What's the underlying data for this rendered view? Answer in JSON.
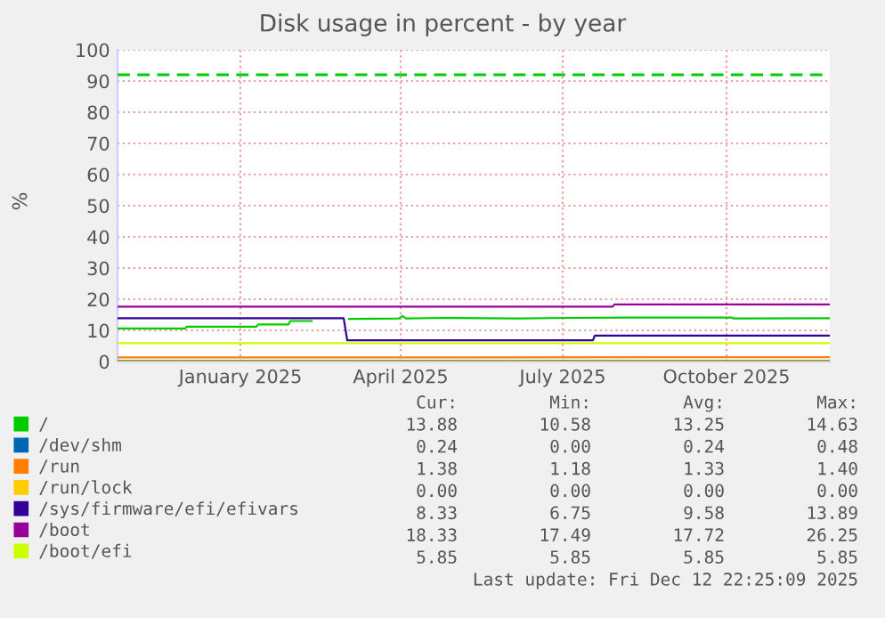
{
  "chart_data": {
    "type": "line",
    "title": "Disk usage in percent - by year",
    "ylabel": "%",
    "xlim": [
      "2024-11-07",
      "2025-12-12"
    ],
    "xticks": [
      {
        "value": "2025-01-15",
        "label": "January 2025"
      },
      {
        "value": "2025-04-15",
        "label": "April 2025"
      },
      {
        "value": "2025-07-15",
        "label": "July 2025"
      },
      {
        "value": "2025-10-15",
        "label": "October 2025"
      }
    ],
    "ylim": [
      0,
      100
    ],
    "yticks": [
      0,
      10,
      20,
      30,
      40,
      50,
      60,
      70,
      80,
      90,
      100
    ],
    "grid": true,
    "legend": "bottom",
    "series": [
      {
        "name": "/",
        "color": "#00cc00",
        "x": [
          "2024-11-07",
          "2024-12-15",
          "2024-12-16",
          "2025-01-24",
          "2025-01-25",
          "2025-02-11",
          "2025-02-12",
          "2025-02-24",
          "2025-02-25",
          "2025-03-17",
          "2025-04-14",
          "2025-04-16",
          "2025-04-18",
          "2025-05-10",
          "2025-06-20",
          "2025-07-20",
          "2025-08-20",
          "2025-10-18",
          "2025-10-19",
          "2025-12-12"
        ],
        "values": [
          10.6,
          10.6,
          11.2,
          11.2,
          11.9,
          11.9,
          13.0,
          13.0,
          null,
          13.7,
          13.8,
          14.6,
          13.8,
          14.0,
          13.8,
          14.0,
          14.1,
          14.1,
          13.8,
          13.9
        ]
      },
      {
        "name": "/dev/shm",
        "color": "#0066b3",
        "x": [
          "2024-11-07",
          "2025-12-12"
        ],
        "values": [
          0.2,
          0.2
        ]
      },
      {
        "name": "/run",
        "color": "#ff8000",
        "x": [
          "2024-11-07",
          "2025-12-12"
        ],
        "values": [
          1.3,
          1.4
        ]
      },
      {
        "name": "/run/lock",
        "color": "#ffcc00",
        "x": [
          "2024-11-07",
          "2025-12-12"
        ],
        "values": [
          0,
          0
        ]
      },
      {
        "name": "/sys/firmware/efi/efivars",
        "color": "#330099",
        "x": [
          "2024-11-07",
          "2025-03-14",
          "2025-03-16",
          "2025-08-01",
          "2025-08-02",
          "2025-12-12"
        ],
        "values": [
          13.9,
          13.9,
          6.8,
          6.8,
          8.3,
          8.3
        ]
      },
      {
        "name": "/boot",
        "color": "#990099",
        "x": [
          "2024-11-07",
          "2025-08-12",
          "2025-08-13",
          "2025-12-12"
        ],
        "values": [
          17.6,
          17.6,
          18.3,
          18.3
        ]
      },
      {
        "name": "/boot/efi",
        "color": "#ccff00",
        "x": [
          "2024-11-07",
          "2025-12-12"
        ],
        "values": [
          5.9,
          5.9
        ]
      }
    ],
    "ref_lines": [
      {
        "axis": "y",
        "value": 92,
        "color": "#00cc00",
        "line_style": "dashed"
      }
    ],
    "annotations": [
      "Cur:",
      "Min:",
      "Avg:",
      "Max:",
      "13.88",
      "10.58",
      "13.25",
      "14.63",
      "0.24",
      "0.00",
      "0.24",
      "0.48",
      "1.38",
      "1.18",
      "1.33",
      "1.40",
      "0.00",
      "0.00",
      "0.00",
      "0.00",
      "8.33",
      "6.75",
      "9.58",
      "13.89",
      "18.33",
      "17.49",
      "17.72",
      "26.25",
      "5.85",
      "5.85",
      "5.85",
      "5.85",
      "Last update: Fri Dec 12 22:25:09 2025"
    ]
  }
}
